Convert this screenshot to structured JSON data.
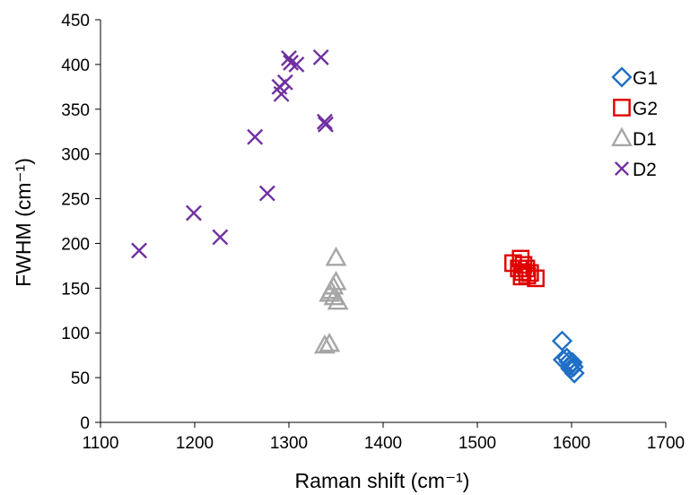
{
  "chart_data": {
    "type": "scatter",
    "title": "",
    "xlabel": "Raman shift (cm⁻¹)",
    "ylabel": "FWHM  (cm⁻¹)",
    "xlim": [
      1100,
      1700
    ],
    "ylim": [
      0,
      450
    ],
    "xticks": [
      1100,
      1200,
      1300,
      1400,
      1500,
      1600,
      1700
    ],
    "yticks": [
      0,
      50,
      100,
      150,
      200,
      250,
      300,
      350,
      400,
      450
    ],
    "grid": false,
    "legend_position": "top-right",
    "series": [
      {
        "name": "G1",
        "marker": "diamond",
        "color": "#1f6fc4",
        "points": [
          [
            1590,
            91
          ],
          [
            1591,
            70
          ],
          [
            1595,
            72
          ],
          [
            1597,
            68
          ],
          [
            1598,
            63
          ],
          [
            1600,
            65
          ],
          [
            1602,
            62
          ],
          [
            1603,
            55
          ],
          [
            1601,
            67
          ],
          [
            1599,
            60
          ]
        ]
      },
      {
        "name": "G2",
        "marker": "square",
        "color": "#e00000",
        "points": [
          [
            1538,
            178
          ],
          [
            1546,
            183
          ],
          [
            1549,
            176
          ],
          [
            1544,
            172
          ],
          [
            1548,
            168
          ],
          [
            1552,
            172
          ],
          [
            1547,
            163
          ],
          [
            1556,
            167
          ],
          [
            1553,
            164
          ],
          [
            1562,
            161
          ]
        ]
      },
      {
        "name": "D1",
        "marker": "triangle",
        "color": "#a6a6a6",
        "points": [
          [
            1350,
            184
          ],
          [
            1350,
            157
          ],
          [
            1347,
            152
          ],
          [
            1345,
            147
          ],
          [
            1343,
            144
          ],
          [
            1352,
            135
          ],
          [
            1348,
            140
          ],
          [
            1338,
            86
          ],
          [
            1343,
            88
          ]
        ]
      },
      {
        "name": "D2",
        "marker": "x",
        "color": "#7030a0",
        "points": [
          [
            1141,
            192
          ],
          [
            1199,
            234
          ],
          [
            1227,
            207
          ],
          [
            1264,
            319
          ],
          [
            1277,
            256
          ],
          [
            1290,
            375
          ],
          [
            1292,
            367
          ],
          [
            1296,
            380
          ],
          [
            1300,
            407
          ],
          [
            1302,
            402
          ],
          [
            1308,
            400
          ],
          [
            1334,
            408
          ],
          [
            1338,
            336
          ],
          [
            1339,
            333
          ]
        ]
      }
    ]
  }
}
